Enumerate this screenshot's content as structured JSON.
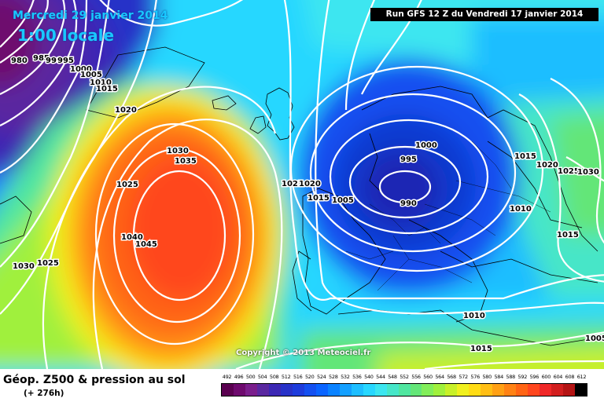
{
  "header": {
    "date_line": "Mercredi 29 janvier 2014",
    "time_line": "1:00 locale",
    "run_info": "Run GFS 12 Z du Vendredi 17 janvier 2014"
  },
  "copyright": "Copyright © 2013 Meteociel.fr",
  "footer": {
    "product": "Géop. Z500 & pression au sol",
    "lead_time": "(+ 276h)"
  },
  "map_data": {
    "type": "contour",
    "field_shaded": "Géop. Z500",
    "field_contoured": "pression au sol",
    "pressure_centers": [
      {
        "kind": "high",
        "value": 1045
      },
      {
        "kind": "low",
        "value": 990
      },
      {
        "kind": "low",
        "value": 980
      }
    ],
    "isobar_labels": [
      {
        "label": "980"
      },
      {
        "label": "985"
      },
      {
        "label": "990"
      },
      {
        "label": "995"
      },
      {
        "label": "1000"
      },
      {
        "label": "1005"
      },
      {
        "label": "1010"
      },
      {
        "label": "1015"
      },
      {
        "label": "1020"
      },
      {
        "label": "1030"
      },
      {
        "label": "1035"
      },
      {
        "label": "1025"
      },
      {
        "label": "1040"
      },
      {
        "label": "1045"
      },
      {
        "label": "1030"
      },
      {
        "label": "1025"
      },
      {
        "label": "1025"
      },
      {
        "label": "1020"
      },
      {
        "label": "1015"
      },
      {
        "label": "1005"
      },
      {
        "label": "1000"
      },
      {
        "label": "995"
      },
      {
        "label": "990"
      },
      {
        "label": "1015"
      },
      {
        "label": "1020"
      },
      {
        "label": "1025"
      },
      {
        "label": "1030"
      },
      {
        "label": "1010"
      },
      {
        "label": "1015"
      },
      {
        "label": "1010"
      },
      {
        "label": "1015"
      },
      {
        "label": "1005"
      }
    ],
    "color_scale": {
      "labels": [
        "492",
        "496",
        "500",
        "504",
        "508",
        "512",
        "516",
        "520",
        "524",
        "528",
        "532",
        "536",
        "540",
        "544",
        "548",
        "552",
        "556",
        "560",
        "564",
        "568",
        "572",
        "576",
        "580",
        "584",
        "588",
        "592",
        "596",
        "600",
        "604",
        "608",
        "612"
      ],
      "colors": [
        "#5a0050",
        "#6e0a6e",
        "#7a1e8c",
        "#5a28a0",
        "#3c28b4",
        "#2832c8",
        "#1e3cdc",
        "#1450f0",
        "#0a64ff",
        "#0a82ff",
        "#14a0ff",
        "#1ebeff",
        "#28d7ff",
        "#3ce6f0",
        "#46e6c8",
        "#50e6a0",
        "#64e678",
        "#82ee5a",
        "#a0f03c",
        "#c8f028",
        "#f0f01e",
        "#ffdc14",
        "#ffbe14",
        "#ffa014",
        "#ff8214",
        "#ff6414",
        "#ff461e",
        "#f02828",
        "#d21e1e",
        "#b41414",
        "#000000"
      ]
    }
  }
}
